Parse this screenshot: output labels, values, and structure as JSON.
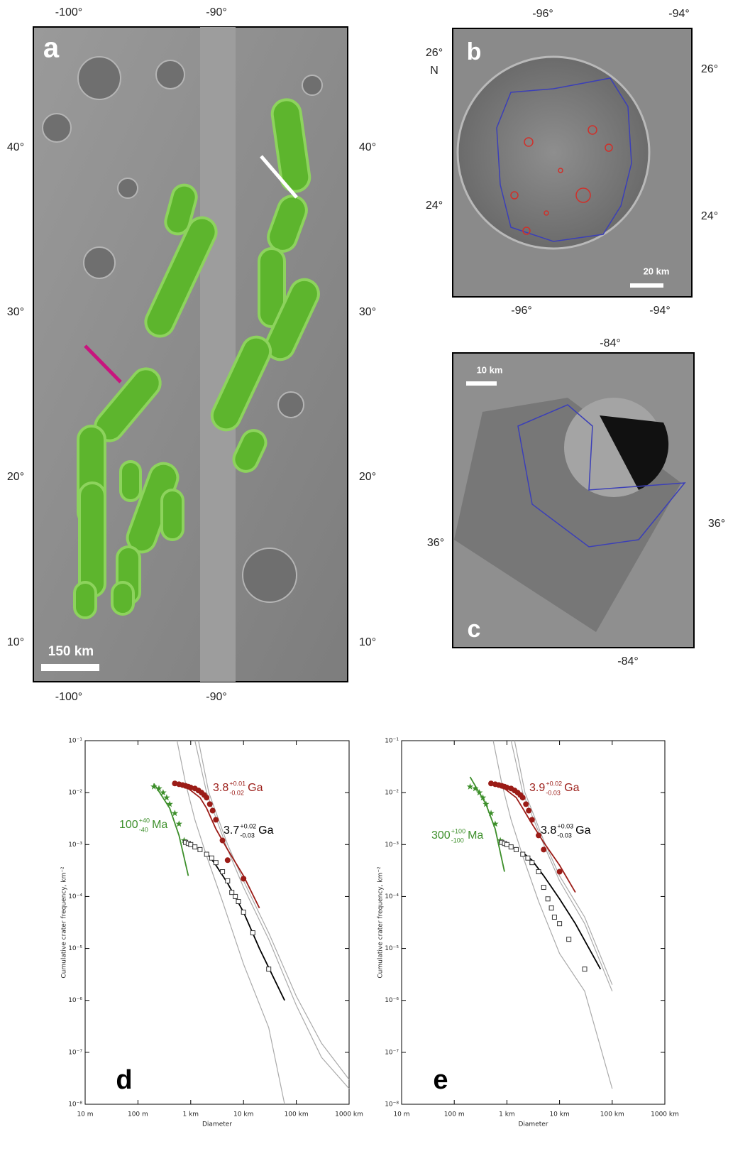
{
  "maps": [
    {
      "label": "a",
      "scale_bar": "150 km",
      "top": [
        "-100°",
        "-90°"
      ],
      "bottom": [
        "-100°",
        "-90°"
      ],
      "left": [
        "40°",
        "30°",
        "20°",
        "10°"
      ],
      "right": [
        "40°",
        "30°",
        "20°",
        "10°"
      ]
    },
    {
      "label": "b",
      "scale_bar": "20 km",
      "top": [
        "-96°",
        "-94°"
      ],
      "bottom": [
        "-96°",
        "-94°"
      ],
      "left": [
        "26°",
        "24°"
      ],
      "left_extra": "N",
      "right": [
        "26°",
        "24°"
      ]
    },
    {
      "label": "c",
      "scale_bar": "10 km",
      "top": [
        "-84°"
      ],
      "bottom": [
        "-84°"
      ],
      "left": [
        "36°"
      ],
      "right": [
        "36°"
      ]
    }
  ],
  "chart_data": [
    {
      "type": "scatter",
      "panel": "d",
      "x_label": "Diameter",
      "y_label": "Cumulative crater frequency, km⁻²",
      "log_x": true,
      "log_y": true,
      "xlim": [
        0.01,
        1000
      ],
      "xticks": [
        {
          "value": 0.01,
          "label": "10 m"
        },
        {
          "value": 0.1,
          "label": "100 m"
        },
        {
          "value": 1,
          "label": "1 km"
        },
        {
          "value": 10,
          "label": "10 km"
        },
        {
          "value": 100,
          "label": "100 km"
        },
        {
          "value": 1000,
          "label": "1000 km"
        }
      ],
      "ylim": [
        1e-08,
        0.1
      ],
      "yticks": [
        {
          "value": 1e-08,
          "label": "10⁻⁸"
        },
        {
          "value": 1e-07,
          "label": "10⁻⁷"
        },
        {
          "value": 1e-06,
          "label": "10⁻⁶"
        },
        {
          "value": 1e-05,
          "label": "10⁻⁵"
        },
        {
          "value": 0.0001,
          "label": "10⁻⁴"
        },
        {
          "value": 0.001,
          "label": "10⁻³"
        },
        {
          "value": 0.01,
          "label": "10⁻²"
        },
        {
          "value": 0.1,
          "label": "10⁻¹"
        }
      ],
      "series": [
        {
          "kind": "curve",
          "color": "#aaaaaa",
          "x": [
            0.55,
            0.8,
            1.2,
            2,
            4,
            10,
            30,
            60
          ],
          "values": [
            0.1,
            0.015,
            0.003,
            0.0006,
            8e-05,
            5e-06,
            3e-07,
            1e-08
          ]
        },
        {
          "kind": "curve",
          "color": "#aaaaaa",
          "x": [
            1.2,
            2,
            5,
            10,
            30,
            100,
            300,
            1000
          ],
          "values": [
            0.1,
            0.01,
            0.0008,
            0.00015,
            1.5e-05,
            8e-07,
            8e-08,
            2e-08
          ]
        },
        {
          "kind": "curve",
          "color": "#aaaaaa",
          "x": [
            1.4,
            2.2,
            5,
            10,
            30,
            100,
            300,
            1000
          ],
          "values": [
            0.1,
            0.01,
            0.001,
            0.0002,
            2e-05,
            1.2e-06,
            1.5e-07,
            3e-08
          ]
        },
        {
          "kind": "curve",
          "color": "#9b1c17",
          "x": [
            0.9,
            1.5,
            2,
            3,
            5,
            10,
            20
          ],
          "values": [
            0.012,
            0.008,
            0.005,
            0.002,
            0.0008,
            0.00025,
            6e-05
          ]
        },
        {
          "kind": "curve",
          "color": "#000000",
          "x": [
            2,
            3,
            5,
            10,
            20,
            60
          ],
          "values": [
            0.0007,
            0.0004,
            0.00018,
            5e-05,
            1e-05,
            1e-06
          ]
        },
        {
          "kind": "curve",
          "color": "#3d8f2b",
          "x": [
            0.2,
            0.4,
            0.6,
            0.9
          ],
          "values": [
            0.015,
            0.005,
            0.0015,
            0.00025
          ]
        },
        {
          "kind": "points",
          "marker": "star",
          "color": "#3d8f2b",
          "x": [
            0.2,
            0.25,
            0.3,
            0.35,
            0.4,
            0.5,
            0.6,
            0.75
          ],
          "values": [
            0.013,
            0.012,
            0.01,
            0.008,
            0.006,
            0.004,
            0.0025,
            0.0012
          ]
        },
        {
          "kind": "points",
          "marker": "circle",
          "color": "#9b1c17",
          "x": [
            0.5,
            0.6,
            0.7,
            0.8,
            0.9,
            1,
            1.2,
            1.4,
            1.6,
            1.8,
            2,
            2.3,
            2.6,
            3,
            4,
            5,
            10
          ],
          "values": [
            0.015,
            0.0145,
            0.014,
            0.0135,
            0.013,
            0.0125,
            0.012,
            0.011,
            0.01,
            0.009,
            0.008,
            0.006,
            0.0045,
            0.003,
            0.0012,
            0.0005,
            0.00022
          ]
        },
        {
          "kind": "points",
          "marker": "square",
          "color": "#333333",
          "x": [
            0.8,
            0.9,
            1,
            1.2,
            1.5,
            2,
            2.5,
            3,
            4,
            5,
            6,
            7,
            8,
            10,
            15,
            30
          ],
          "values": [
            0.0011,
            0.00105,
            0.001,
            0.0009,
            0.0008,
            0.00065,
            0.00055,
            0.00045,
            0.0003,
            0.0002,
            0.00012,
            0.0001,
            8e-05,
            5e-05,
            2e-05,
            4e-06
          ]
        }
      ],
      "ages": [
        {
          "color": "#9b1c17",
          "age": 3.8,
          "plus": "+0.01",
          "minus": -0.02,
          "unit": "Ga"
        },
        {
          "color": "#000000",
          "age": 3.7,
          "plus": "+0.02",
          "minus": -0.03,
          "unit": "Ga"
        },
        {
          "color": "#3d8f2b",
          "age": 100,
          "plus": "+40",
          "minus": -40,
          "unit": "Ma"
        }
      ]
    },
    {
      "type": "scatter",
      "panel": "e",
      "x_label": "Diameter",
      "y_label": "Cumulative crater frequency, km⁻²",
      "log_x": true,
      "log_y": true,
      "xlim": [
        0.01,
        1000
      ],
      "xticks": [
        {
          "value": 0.01,
          "label": "10 m"
        },
        {
          "value": 0.1,
          "label": "100 m"
        },
        {
          "value": 1,
          "label": "1 km"
        },
        {
          "value": 10,
          "label": "10 km"
        },
        {
          "value": 100,
          "label": "100 km"
        },
        {
          "value": 1000,
          "label": "1000 km"
        }
      ],
      "ylim": [
        1e-08,
        0.1
      ],
      "yticks": [
        {
          "value": 1e-08,
          "label": "10⁻⁸"
        },
        {
          "value": 1e-07,
          "label": "10⁻⁷"
        },
        {
          "value": 1e-06,
          "label": "10⁻⁶"
        },
        {
          "value": 1e-05,
          "label": "10⁻⁵"
        },
        {
          "value": 0.0001,
          "label": "10⁻⁴"
        },
        {
          "value": 0.001,
          "label": "10⁻³"
        },
        {
          "value": 0.01,
          "label": "10⁻²"
        },
        {
          "value": 0.1,
          "label": "10⁻¹"
        }
      ],
      "series": [
        {
          "kind": "curve",
          "color": "#aaaaaa",
          "x": [
            0.55,
            0.8,
            1.2,
            2,
            4,
            10,
            30,
            100
          ],
          "values": [
            0.1,
            0.015,
            0.003,
            0.0006,
            8e-05,
            8e-06,
            1.5e-06,
            2e-08
          ]
        },
        {
          "kind": "curve",
          "color": "#aaaaaa",
          "x": [
            1.2,
            2,
            5,
            10,
            30,
            100
          ],
          "values": [
            0.1,
            0.01,
            0.001,
            0.0002,
            3e-05,
            1.5e-06
          ]
        },
        {
          "kind": "curve",
          "color": "#aaaaaa",
          "x": [
            1.4,
            2.2,
            5,
            10,
            30,
            100
          ],
          "values": [
            0.1,
            0.01,
            0.0012,
            0.00025,
            4e-05,
            2e-06
          ]
        },
        {
          "kind": "curve",
          "color": "#9b1c17",
          "x": [
            0.9,
            1.5,
            2,
            3,
            5,
            10,
            20
          ],
          "values": [
            0.012,
            0.008,
            0.005,
            0.0025,
            0.0011,
            0.0004,
            0.00012
          ]
        },
        {
          "kind": "curve",
          "color": "#000000",
          "x": [
            2,
            3,
            5,
            10,
            20,
            60
          ],
          "values": [
            0.0007,
            0.0005,
            0.00025,
            9e-05,
            3e-05,
            4e-06
          ]
        },
        {
          "kind": "curve",
          "color": "#3d8f2b",
          "x": [
            0.2,
            0.4,
            0.6,
            0.9
          ],
          "values": [
            0.02,
            0.006,
            0.002,
            0.0003
          ]
        },
        {
          "kind": "points",
          "marker": "star",
          "color": "#3d8f2b",
          "x": [
            0.2,
            0.25,
            0.3,
            0.35,
            0.4,
            0.5,
            0.6,
            0.75
          ],
          "values": [
            0.013,
            0.012,
            0.01,
            0.008,
            0.006,
            0.004,
            0.0025,
            0.0012
          ]
        },
        {
          "kind": "points",
          "marker": "circle",
          "color": "#9b1c17",
          "x": [
            0.5,
            0.6,
            0.7,
            0.8,
            0.9,
            1,
            1.2,
            1.4,
            1.6,
            1.8,
            2,
            2.3,
            2.6,
            3,
            4,
            5,
            10
          ],
          "values": [
            0.015,
            0.0145,
            0.014,
            0.0135,
            0.013,
            0.0125,
            0.012,
            0.011,
            0.01,
            0.009,
            0.008,
            0.006,
            0.0045,
            0.003,
            0.0015,
            0.0008,
            0.0003
          ]
        },
        {
          "kind": "points",
          "marker": "square",
          "color": "#333333",
          "x": [
            0.8,
            0.9,
            1,
            1.2,
            1.5,
            2,
            2.5,
            3,
            4,
            5,
            6,
            7,
            8,
            10,
            15,
            30
          ],
          "values": [
            0.0011,
            0.00105,
            0.001,
            0.0009,
            0.0008,
            0.00065,
            0.00055,
            0.00045,
            0.0003,
            0.00015,
            9e-05,
            6e-05,
            4e-05,
            3e-05,
            1.5e-05,
            4e-06
          ]
        }
      ],
      "ages": [
        {
          "color": "#9b1c17",
          "age": 3.9,
          "plus": "+0.02",
          "minus": -0.03,
          "unit": "Ga"
        },
        {
          "color": "#000000",
          "age": 3.8,
          "plus": "+0.03",
          "minus": -0.03,
          "unit": "Ga"
        },
        {
          "color": "#3d8f2b",
          "age": 300,
          "plus": "+100",
          "minus": -100,
          "unit": "Ma"
        }
      ]
    }
  ]
}
